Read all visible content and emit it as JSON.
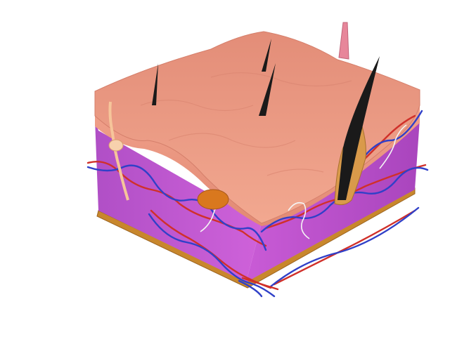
{
  "scene": {
    "subject": "skin-cross-section-3d-model",
    "colors": {
      "background": "#ffffff",
      "epidermis_top": "#e8937e",
      "epidermis_edge": "#f0a58f",
      "dermis": "#c25bd0",
      "dermis_dark": "#9a3fae",
      "base_layer": "#c8872c",
      "hair": "#1a1a1a",
      "hair_follicle": "#d99a4a",
      "artery": "#d0302a",
      "vein": "#3040c8",
      "nerve": "#f4f4f4",
      "gland": "#d9781e",
      "lymph_vessel": "#f6c59a",
      "erector_muscle": "#e7869a"
    }
  }
}
